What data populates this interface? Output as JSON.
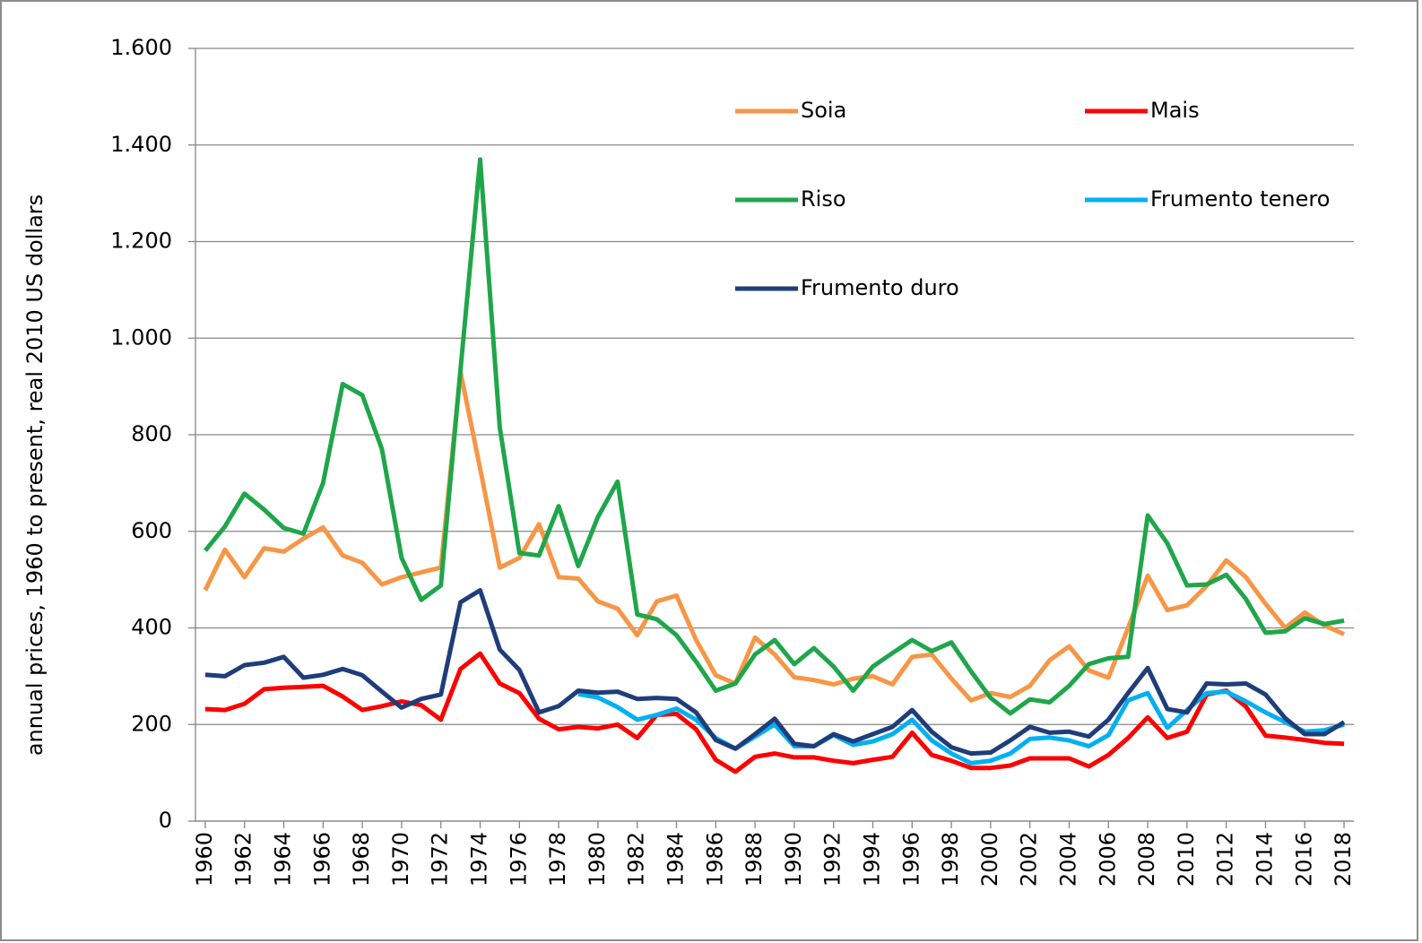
{
  "chart_data": {
    "type": "line",
    "y_label": "annual prices,  1960 to present,  real 2010 US dollars",
    "x": [
      1960,
      1961,
      1962,
      1963,
      1964,
      1965,
      1966,
      1967,
      1968,
      1969,
      1970,
      1971,
      1972,
      1973,
      1974,
      1975,
      1976,
      1977,
      1978,
      1979,
      1980,
      1981,
      1982,
      1983,
      1984,
      1985,
      1986,
      1987,
      1988,
      1989,
      1990,
      1991,
      1992,
      1993,
      1994,
      1995,
      1996,
      1997,
      1998,
      1999,
      2000,
      2001,
      2002,
      2003,
      2004,
      2005,
      2006,
      2007,
      2008,
      2009,
      2010,
      2011,
      2012,
      2013,
      2014,
      2015,
      2016,
      2017,
      2018
    ],
    "xlim": [
      1959.5,
      2018.5
    ],
    "xticks": [
      1960,
      1962,
      1964,
      1966,
      1968,
      1970,
      1972,
      1974,
      1976,
      1978,
      1980,
      1982,
      1984,
      1986,
      1988,
      1990,
      1992,
      1994,
      1996,
      1998,
      2000,
      2002,
      2004,
      2006,
      2008,
      2010,
      2012,
      2014,
      2016,
      2018
    ],
    "ylim": [
      0,
      1600
    ],
    "yticks": [
      0,
      200,
      400,
      600,
      800,
      {
        "value": 1000,
        "label": "1.000"
      },
      {
        "value": 1200,
        "label": "1.200"
      },
      {
        "value": 1400,
        "label": "1.400"
      },
      {
        "value": 1600,
        "label": "1.600"
      }
    ],
    "grid": true,
    "legend": "upper right",
    "series": [
      {
        "name": "Soia",
        "color": "#f79646",
        "values": [
          478,
          562,
          505,
          565,
          558,
          585,
          608,
          550,
          535,
          490,
          505,
          515,
          525,
          930,
          730,
          525,
          545,
          615,
          505,
          502,
          455,
          440,
          385,
          455,
          467,
          375,
          302,
          285,
          380,
          345,
          298,
          292,
          283,
          295,
          300,
          283,
          340,
          345,
          295,
          250,
          265,
          257,
          280,
          333,
          362,
          312,
          297,
          400,
          508,
          437,
          447,
          487,
          540,
          505,
          450,
          400,
          432,
          405,
          387
        ]
      },
      {
        "name": "Mais",
        "color": "#ff0000",
        "values": [
          232,
          230,
          243,
          273,
          276,
          278,
          280,
          258,
          230,
          238,
          248,
          240,
          210,
          315,
          347,
          285,
          265,
          212,
          190,
          195,
          192,
          200,
          172,
          220,
          222,
          190,
          127,
          102,
          133,
          140,
          132,
          132,
          125,
          120,
          127,
          133,
          183,
          137,
          125,
          110,
          110,
          115,
          130,
          130,
          130,
          113,
          137,
          172,
          215,
          172,
          185,
          262,
          270,
          237,
          177,
          173,
          168,
          162,
          160
        ]
      },
      {
        "name": "Riso",
        "color": "#1fa64a",
        "values": [
          560,
          610,
          678,
          645,
          607,
          595,
          700,
          905,
          882,
          770,
          545,
          458,
          488,
          935,
          1370,
          815,
          555,
          550,
          652,
          528,
          630,
          703,
          428,
          418,
          385,
          330,
          270,
          285,
          345,
          375,
          325,
          358,
          320,
          270,
          320,
          348,
          375,
          352,
          370,
          310,
          255,
          223,
          252,
          246,
          280,
          325,
          337,
          340,
          633,
          575,
          488,
          490,
          510,
          460,
          390,
          393,
          420,
          408,
          415
        ]
      },
      {
        "name": "Frumento tenero",
        "color": "#00b0f0",
        "values": [
          null,
          null,
          null,
          null,
          null,
          null,
          null,
          null,
          null,
          null,
          null,
          null,
          null,
          null,
          null,
          null,
          null,
          null,
          null,
          263,
          256,
          236,
          210,
          220,
          233,
          210,
          172,
          150,
          175,
          200,
          155,
          155,
          178,
          158,
          165,
          180,
          210,
          167,
          140,
          120,
          125,
          140,
          170,
          173,
          167,
          155,
          178,
          250,
          265,
          193,
          230,
          265,
          268,
          248,
          225,
          205,
          185,
          188,
          200
        ]
      },
      {
        "name": "Frumento duro",
        "color": "#1f3d7a",
        "values": [
          303,
          300,
          323,
          328,
          340,
          297,
          303,
          315,
          302,
          268,
          235,
          253,
          262,
          453,
          478,
          355,
          313,
          225,
          238,
          270,
          266,
          268,
          253,
          255,
          253,
          225,
          168,
          150,
          180,
          212,
          160,
          155,
          180,
          165,
          180,
          195,
          230,
          185,
          153,
          140,
          142,
          167,
          195,
          183,
          185,
          175,
          210,
          265,
          317,
          232,
          225,
          285,
          283,
          285,
          262,
          213,
          180,
          180,
          205
        ]
      }
    ]
  }
}
